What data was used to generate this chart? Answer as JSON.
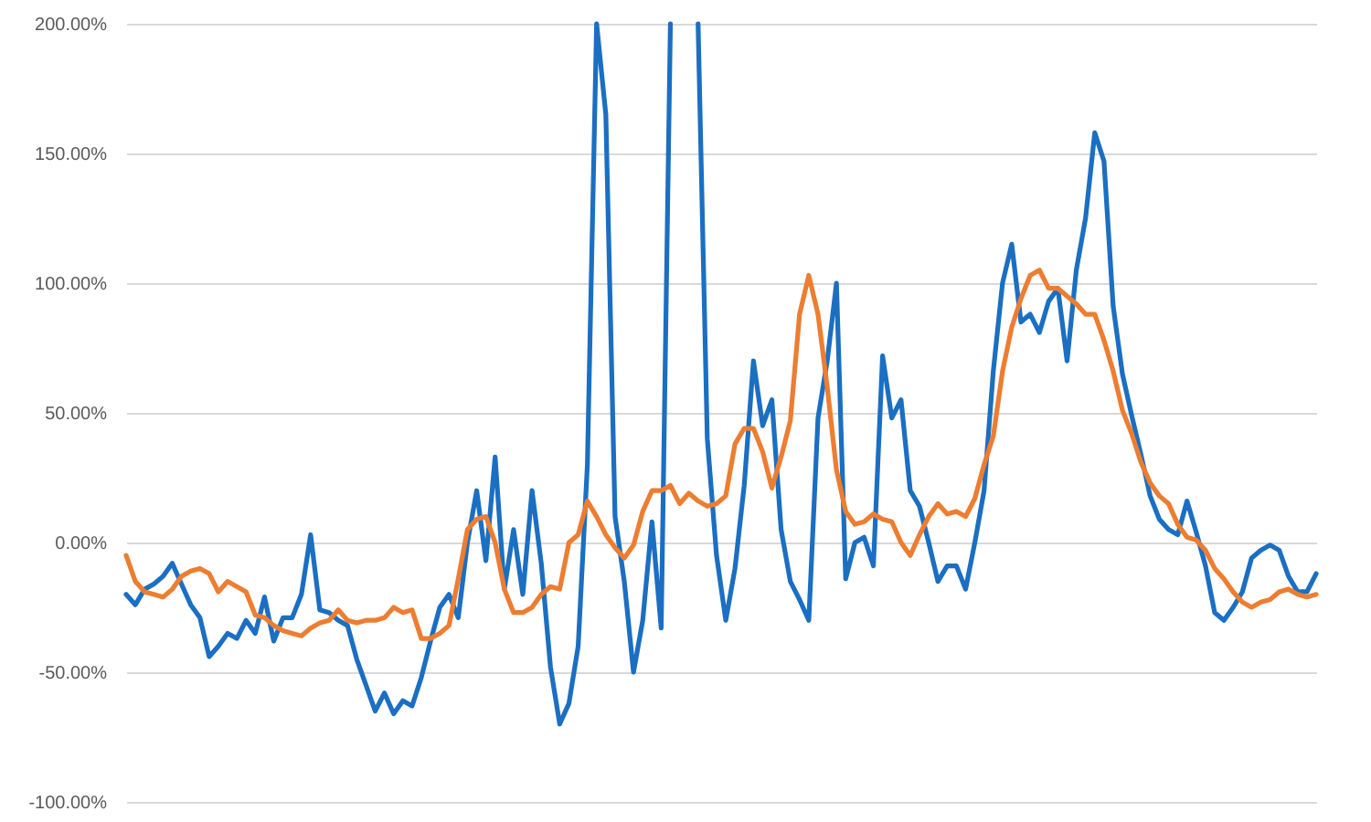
{
  "chart_data": {
    "type": "line",
    "categories": [
      null,
      null,
      null,
      null,
      null,
      null,
      null,
      null,
      null,
      null,
      null,
      null,
      null,
      null,
      null,
      null,
      null,
      null,
      null,
      null,
      null,
      null,
      null,
      null,
      null,
      null,
      null,
      null,
      null,
      null,
      null,
      null,
      null,
      null,
      null,
      null,
      null,
      null,
      null,
      null,
      null,
      null,
      null,
      null,
      null,
      null,
      null,
      null,
      null,
      null,
      null,
      null,
      null,
      null,
      null,
      null,
      null,
      null,
      null,
      null,
      null,
      null,
      null,
      null,
      null,
      null,
      null,
      null,
      null,
      null,
      null,
      null,
      null,
      null,
      null,
      null,
      null,
      null,
      null,
      null,
      null,
      null,
      null,
      null,
      null,
      null,
      null,
      null,
      null,
      null,
      null,
      null,
      null,
      null,
      null,
      null,
      null,
      null,
      null,
      null,
      null,
      null,
      null,
      null,
      null,
      null,
      null,
      null,
      null,
      null,
      null,
      null,
      null,
      null,
      null,
      null,
      null,
      null,
      null,
      null,
      null,
      null,
      null,
      null,
      null,
      null,
      null,
      null,
      null,
      null
    ],
    "series": [
      {
        "color": "#1b6fc2",
        "values": [
          -20,
          -24,
          -18,
          -16,
          -13,
          -8,
          -16,
          -24,
          -29,
          -44,
          -40,
          -35,
          -37,
          -30,
          -35,
          -21,
          -38,
          -29,
          -29,
          -20,
          3,
          -26,
          -27,
          -30,
          -32,
          -45,
          -55,
          -65,
          -58,
          -66,
          -61,
          -63,
          -52,
          -38,
          -25,
          -20,
          -29,
          0,
          20,
          -7,
          33,
          -18,
          5,
          -20,
          20,
          -8,
          -48,
          -70,
          -62,
          -40,
          30,
          200,
          165,
          10,
          -15,
          -50,
          -30,
          8,
          -33,
          200,
          null,
          null,
          200,
          40,
          -5,
          -30,
          -10,
          22,
          70,
          45,
          55,
          5,
          -15,
          -22,
          -30,
          48,
          70,
          100,
          -14,
          0,
          2,
          -9,
          72,
          48,
          55,
          20,
          14,
          0,
          -15,
          -9,
          -9,
          -18,
          0,
          20,
          66,
          100,
          115,
          85,
          88,
          81,
          93,
          98,
          70,
          105,
          125,
          158,
          147,
          91,
          65,
          49,
          34,
          18,
          9,
          5,
          3,
          16,
          4,
          -9,
          -27,
          -30,
          -25,
          -19,
          -6,
          -3,
          -1,
          -3,
          -13,
          -19,
          -19,
          -12
        ]
      },
      {
        "color": "#ed7d31",
        "values": [
          -5,
          -15,
          -19,
          -20,
          -21,
          -18,
          -13,
          -11,
          -10,
          -12,
          -19,
          -15,
          -17,
          -19,
          -28,
          -29,
          -32,
          -34,
          -35,
          -36,
          -33,
          -31,
          -30,
          -26,
          -30,
          -31,
          -30,
          -30,
          -29,
          -25,
          -27,
          -26,
          -37,
          -37,
          -35,
          -32,
          -14,
          5,
          9,
          10,
          0,
          -18,
          -27,
          -27,
          -25,
          -20,
          -17,
          -18,
          0,
          3,
          16,
          10,
          3,
          -2,
          -6,
          -1,
          12,
          20,
          20,
          22,
          15,
          19,
          16,
          14,
          15,
          18,
          38,
          44,
          44,
          35,
          21,
          33,
          47,
          88,
          103,
          88,
          60,
          28,
          12,
          7,
          8,
          11,
          9,
          8,
          0,
          -5,
          3,
          10,
          15,
          11,
          12,
          10,
          17,
          30,
          41,
          66,
          83,
          94,
          103,
          105,
          98,
          98,
          95,
          92,
          88,
          88,
          78,
          66,
          51,
          42,
          31,
          23,
          18,
          15,
          7,
          2,
          1,
          -3,
          -10,
          -14,
          -19,
          -23,
          -25,
          -23,
          -22,
          -19,
          -18,
          -20,
          -21,
          -20
        ]
      }
    ],
    "ylim": [
      -100,
      200
    ],
    "yticks": [
      {
        "value": -100,
        "label": "-100.00%"
      },
      {
        "value": -50,
        "label": "-50.00%"
      },
      {
        "value": 0,
        "label": "0.00%"
      },
      {
        "value": 50,
        "label": "50.00%"
      },
      {
        "value": 100,
        "label": "100.00%"
      },
      {
        "value": 150,
        "label": "150.00%"
      },
      {
        "value": 200,
        "label": "200.00%"
      }
    ],
    "grid": "y",
    "tick_labels": "y"
  }
}
